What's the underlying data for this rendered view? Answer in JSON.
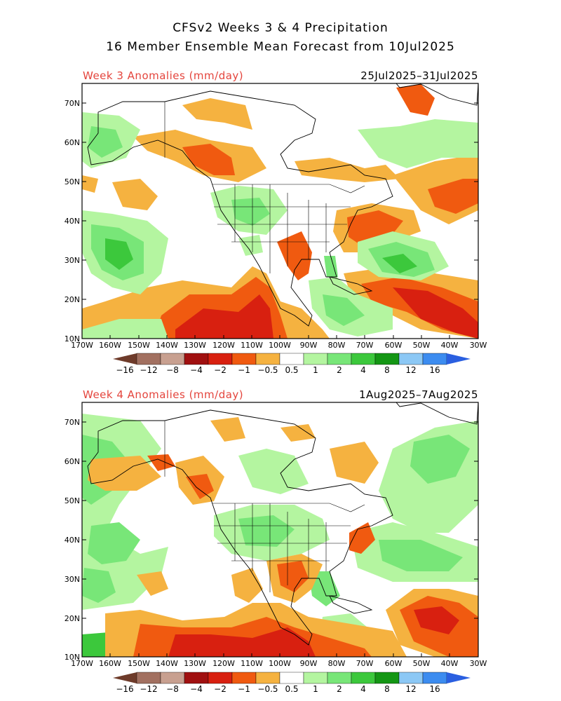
{
  "title_line1": "CFSv2 Weeks 3 & 4 Precipitation",
  "title_line2": "16 Member Ensemble Mean Forecast from 10Jul2025",
  "panels": [
    {
      "label": "Week 3 Anomalies (mm/day)",
      "dates": "25Jul2025–31Jul2025"
    },
    {
      "label": "Week 4 Anomalies (mm/day)",
      "dates": "1Aug2025–7Aug2025"
    }
  ],
  "lat_labels": [
    "70N",
    "60N",
    "50N",
    "40N",
    "30N",
    "20N",
    "10N"
  ],
  "lon_labels": [
    "170W",
    "160W",
    "150W",
    "140W",
    "130W",
    "120W",
    "110W",
    "100W",
    "90W",
    "80W",
    "70W",
    "60W",
    "50W",
    "40W",
    "30W"
  ],
  "colorbar": {
    "labels": [
      "−16",
      "−12",
      "−8",
      "−4",
      "−2",
      "−1",
      "−0.5",
      "0.5",
      "1",
      "2",
      "4",
      "8",
      "12",
      "16"
    ],
    "colors": [
      "#6e3b2a",
      "#a27060",
      "#c8a090",
      "#a01010",
      "#d82010",
      "#f05a10",
      "#f5b240",
      "#ffffff",
      "#b4f5a0",
      "#78e678",
      "#3cc83c",
      "#149614",
      "#8cc8f5",
      "#3c8cf0",
      "#2a5fe0"
    ]
  },
  "anomaly_colors": {
    "dry_light": "#f5b240",
    "dry_medium": "#f05a10",
    "dry_strong": "#d82010",
    "dry_extreme": "#a01010",
    "wet_light": "#b4f5a0",
    "wet_medium": "#78e678",
    "wet_strong": "#3cc83c",
    "wet_extreme": "#149614",
    "wet_blue": "#8cc8f5"
  }
}
